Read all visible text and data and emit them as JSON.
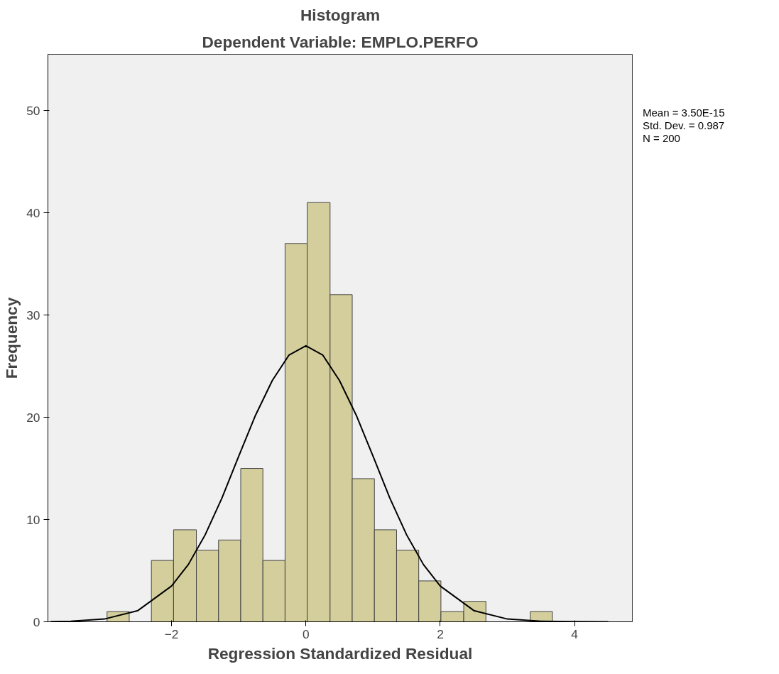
{
  "chart_data": {
    "type": "histogram",
    "title": "Histogram",
    "subtitle": "Dependent Variable: EMPLO.PERFO",
    "xlabel": "Regression Standardized Residual",
    "ylabel": "Frequency",
    "bins": [
      -2.96,
      -2.63,
      -2.3,
      -1.97,
      -1.63,
      -1.3,
      -0.97,
      -0.64,
      -0.31,
      0.02,
      0.36,
      0.69,
      1.02,
      1.35,
      1.68,
      2.01,
      2.35,
      2.68,
      3.34,
      3.67
    ],
    "values": [
      1,
      0,
      6,
      9,
      7,
      8,
      15,
      6,
      37,
      41,
      32,
      14,
      9,
      7,
      4,
      1,
      2,
      0,
      1
    ],
    "color": "#d3ce9b",
    "series": [
      {
        "type": "line",
        "color": "#000000",
        "x": [
          -3.8,
          -3.5,
          -3.0,
          -2.5,
          -2.0,
          -1.75,
          -1.5,
          -1.25,
          -1.0,
          -0.75,
          -0.5,
          -0.25,
          0.0,
          0.25,
          0.5,
          0.75,
          1.0,
          1.25,
          1.5,
          1.75,
          2.0,
          2.5,
          3.0,
          3.5,
          4.0,
          4.5
        ],
        "values": [
          0.02,
          0.05,
          0.27,
          1.1,
          3.5,
          5.6,
          8.5,
          12.1,
          16.2,
          20.2,
          23.6,
          26.1,
          27,
          26.1,
          23.6,
          20.2,
          16.2,
          12.1,
          8.5,
          5.6,
          3.5,
          1.1,
          0.27,
          0.05,
          0.01,
          0
        ]
      }
    ],
    "annotations": [
      "Mean = 3.50E-15",
      "Std. Dev. = 0.987",
      "N = 200"
    ],
    "xlim": [
      -3.84,
      4.86
    ],
    "ylim": [
      0,
      55.5
    ],
    "xticks": [
      -2,
      0,
      2,
      4
    ],
    "yticks": [
      0,
      10,
      20,
      30,
      40,
      50
    ],
    "grid": false
  }
}
